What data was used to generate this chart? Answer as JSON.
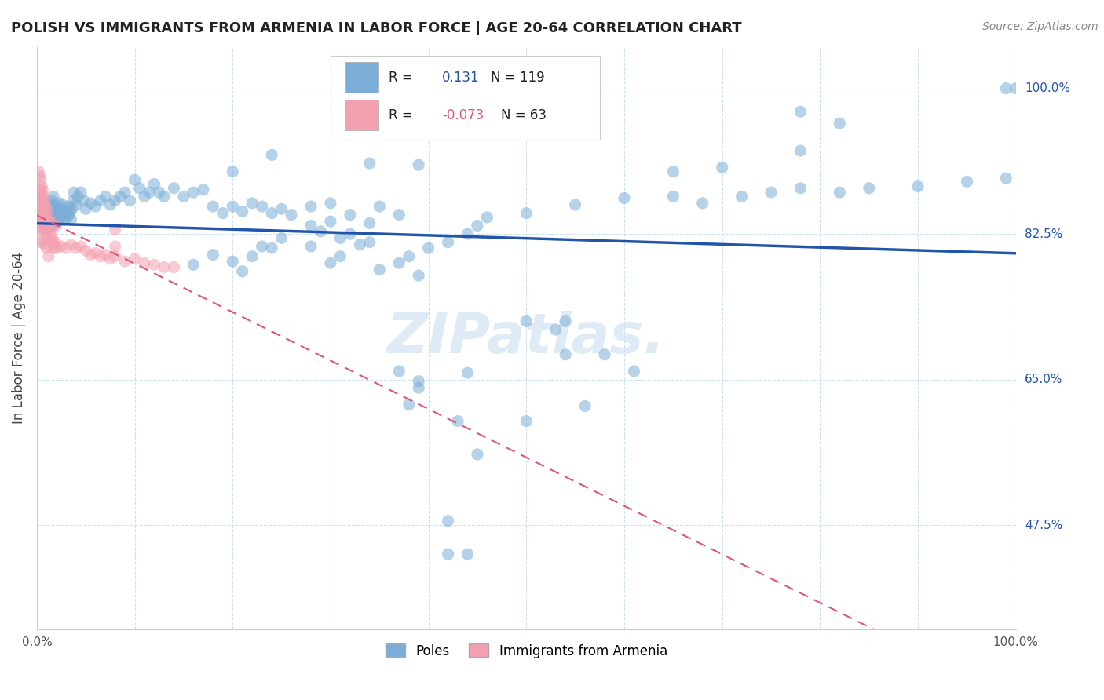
{
  "title": "POLISH VS IMMIGRANTS FROM ARMENIA IN LABOR FORCE | AGE 20-64 CORRELATION CHART",
  "source": "Source: ZipAtlas.com",
  "ylabel": "In Labor Force | Age 20-64",
  "xlim": [
    0.0,
    1.0
  ],
  "ylim": [
    0.35,
    1.05
  ],
  "y_tick_labels_right": [
    "100.0%",
    "82.5%",
    "65.0%",
    "47.5%"
  ],
  "y_tick_vals_right": [
    1.0,
    0.825,
    0.65,
    0.475
  ],
  "legend_blue_R": "0.131",
  "legend_blue_N": "119",
  "legend_pink_R": "-0.073",
  "legend_pink_N": "63",
  "blue_color": "#7aaed6",
  "pink_color": "#f4a0b0",
  "blue_line_color": "#2255aa",
  "pink_line_color": "#dd5577",
  "grid_color": "#c8dff0",
  "watermark_text": "ZIPatlas.",
  "blue_scatter": [
    [
      0.005,
      0.87
    ],
    [
      0.006,
      0.855
    ],
    [
      0.007,
      0.845
    ],
    [
      0.007,
      0.838
    ],
    [
      0.008,
      0.86
    ],
    [
      0.008,
      0.85
    ],
    [
      0.009,
      0.845
    ],
    [
      0.009,
      0.835
    ],
    [
      0.01,
      0.858
    ],
    [
      0.01,
      0.848
    ],
    [
      0.011,
      0.862
    ],
    [
      0.011,
      0.852
    ],
    [
      0.012,
      0.842
    ],
    [
      0.012,
      0.832
    ],
    [
      0.013,
      0.856
    ],
    [
      0.013,
      0.846
    ],
    [
      0.014,
      0.85
    ],
    [
      0.014,
      0.84
    ],
    [
      0.015,
      0.865
    ],
    [
      0.015,
      0.855
    ],
    [
      0.016,
      0.845
    ],
    [
      0.016,
      0.835
    ],
    [
      0.017,
      0.87
    ],
    [
      0.017,
      0.86
    ],
    [
      0.018,
      0.855
    ],
    [
      0.018,
      0.845
    ],
    [
      0.019,
      0.848
    ],
    [
      0.019,
      0.838
    ],
    [
      0.02,
      0.858
    ],
    [
      0.02,
      0.848
    ],
    [
      0.021,
      0.84
    ],
    [
      0.022,
      0.852
    ],
    [
      0.023,
      0.862
    ],
    [
      0.023,
      0.842
    ],
    [
      0.024,
      0.855
    ],
    [
      0.025,
      0.845
    ],
    [
      0.026,
      0.86
    ],
    [
      0.027,
      0.85
    ],
    [
      0.028,
      0.842
    ],
    [
      0.029,
      0.852
    ],
    [
      0.03,
      0.855
    ],
    [
      0.031,
      0.845
    ],
    [
      0.032,
      0.858
    ],
    [
      0.033,
      0.848
    ],
    [
      0.034,
      0.852
    ],
    [
      0.035,
      0.842
    ],
    [
      0.036,
      0.855
    ],
    [
      0.037,
      0.865
    ],
    [
      0.038,
      0.875
    ],
    [
      0.04,
      0.86
    ],
    [
      0.042,
      0.87
    ],
    [
      0.045,
      0.875
    ],
    [
      0.048,
      0.865
    ],
    [
      0.05,
      0.855
    ],
    [
      0.055,
      0.862
    ],
    [
      0.06,
      0.858
    ],
    [
      0.065,
      0.865
    ],
    [
      0.07,
      0.87
    ],
    [
      0.075,
      0.86
    ],
    [
      0.08,
      0.865
    ],
    [
      0.085,
      0.87
    ],
    [
      0.09,
      0.875
    ],
    [
      0.095,
      0.865
    ],
    [
      0.1,
      0.89
    ],
    [
      0.105,
      0.88
    ],
    [
      0.11,
      0.87
    ],
    [
      0.115,
      0.875
    ],
    [
      0.12,
      0.885
    ],
    [
      0.125,
      0.875
    ],
    [
      0.13,
      0.87
    ],
    [
      0.14,
      0.88
    ],
    [
      0.15,
      0.87
    ],
    [
      0.16,
      0.875
    ],
    [
      0.17,
      0.878
    ],
    [
      0.18,
      0.858
    ],
    [
      0.19,
      0.85
    ],
    [
      0.2,
      0.858
    ],
    [
      0.21,
      0.852
    ],
    [
      0.22,
      0.862
    ],
    [
      0.23,
      0.858
    ],
    [
      0.24,
      0.85
    ],
    [
      0.25,
      0.855
    ],
    [
      0.26,
      0.848
    ],
    [
      0.28,
      0.858
    ],
    [
      0.3,
      0.862
    ],
    [
      0.28,
      0.835
    ],
    [
      0.3,
      0.84
    ],
    [
      0.32,
      0.848
    ],
    [
      0.34,
      0.838
    ],
    [
      0.35,
      0.858
    ],
    [
      0.37,
      0.848
    ],
    [
      0.29,
      0.828
    ],
    [
      0.31,
      0.82
    ],
    [
      0.33,
      0.812
    ],
    [
      0.23,
      0.81
    ],
    [
      0.25,
      0.82
    ],
    [
      0.28,
      0.81
    ],
    [
      0.22,
      0.798
    ],
    [
      0.24,
      0.808
    ],
    [
      0.32,
      0.825
    ],
    [
      0.34,
      0.815
    ],
    [
      0.2,
      0.792
    ],
    [
      0.21,
      0.78
    ],
    [
      0.18,
      0.8
    ],
    [
      0.16,
      0.788
    ],
    [
      0.3,
      0.79
    ],
    [
      0.31,
      0.798
    ],
    [
      0.38,
      0.798
    ],
    [
      0.4,
      0.808
    ],
    [
      0.35,
      0.782
    ],
    [
      0.37,
      0.79
    ],
    [
      0.42,
      0.815
    ],
    [
      0.44,
      0.825
    ],
    [
      0.39,
      0.775
    ],
    [
      0.45,
      0.835
    ],
    [
      0.46,
      0.845
    ],
    [
      0.5,
      0.85
    ],
    [
      0.55,
      0.86
    ],
    [
      0.6,
      0.868
    ],
    [
      0.65,
      0.87
    ],
    [
      0.68,
      0.862
    ],
    [
      0.72,
      0.87
    ],
    [
      0.75,
      0.875
    ],
    [
      0.78,
      0.88
    ],
    [
      0.82,
      0.875
    ],
    [
      0.85,
      0.88
    ],
    [
      0.9,
      0.882
    ],
    [
      0.95,
      0.888
    ],
    [
      0.99,
      0.892
    ],
    [
      1.0,
      1.0
    ],
    [
      0.99,
      1.0
    ],
    [
      0.78,
      0.972
    ],
    [
      0.82,
      0.958
    ],
    [
      0.78,
      0.925
    ],
    [
      0.7,
      0.905
    ],
    [
      0.65,
      0.9
    ],
    [
      0.2,
      0.9
    ],
    [
      0.24,
      0.92
    ],
    [
      0.34,
      0.91
    ],
    [
      0.39,
      0.908
    ],
    [
      0.5,
      0.72
    ],
    [
      0.53,
      0.71
    ],
    [
      0.54,
      0.72
    ],
    [
      0.54,
      0.68
    ],
    [
      0.58,
      0.68
    ],
    [
      0.61,
      0.66
    ],
    [
      0.37,
      0.66
    ],
    [
      0.44,
      0.658
    ],
    [
      0.5,
      0.6
    ],
    [
      0.38,
      0.62
    ],
    [
      0.43,
      0.6
    ],
    [
      0.39,
      0.648
    ],
    [
      0.39,
      0.64
    ],
    [
      0.56,
      0.618
    ],
    [
      0.45,
      0.56
    ],
    [
      0.42,
      0.48
    ],
    [
      0.42,
      0.44
    ],
    [
      0.44,
      0.44
    ]
  ],
  "pink_scatter": [
    [
      0.002,
      0.9
    ],
    [
      0.003,
      0.895
    ],
    [
      0.003,
      0.878
    ],
    [
      0.003,
      0.86
    ],
    [
      0.004,
      0.89
    ],
    [
      0.004,
      0.875
    ],
    [
      0.004,
      0.858
    ],
    [
      0.005,
      0.882
    ],
    [
      0.005,
      0.868
    ],
    [
      0.005,
      0.852
    ],
    [
      0.006,
      0.878
    ],
    [
      0.006,
      0.862
    ],
    [
      0.006,
      0.848
    ],
    [
      0.007,
      0.87
    ],
    [
      0.007,
      0.855
    ],
    [
      0.008,
      0.865
    ],
    [
      0.008,
      0.848
    ],
    [
      0.009,
      0.858
    ],
    [
      0.009,
      0.842
    ],
    [
      0.01,
      0.855
    ],
    [
      0.01,
      0.84
    ],
    [
      0.011,
      0.848
    ],
    [
      0.011,
      0.832
    ],
    [
      0.012,
      0.842
    ],
    [
      0.013,
      0.835
    ],
    [
      0.014,
      0.828
    ],
    [
      0.015,
      0.822
    ],
    [
      0.016,
      0.818
    ],
    [
      0.017,
      0.812
    ],
    [
      0.018,
      0.808
    ],
    [
      0.019,
      0.815
    ],
    [
      0.02,
      0.808
    ],
    [
      0.025,
      0.81
    ],
    [
      0.03,
      0.808
    ],
    [
      0.035,
      0.812
    ],
    [
      0.04,
      0.808
    ],
    [
      0.045,
      0.81
    ],
    [
      0.05,
      0.805
    ],
    [
      0.055,
      0.8
    ],
    [
      0.06,
      0.802
    ],
    [
      0.065,
      0.798
    ],
    [
      0.07,
      0.8
    ],
    [
      0.075,
      0.795
    ],
    [
      0.08,
      0.798
    ],
    [
      0.09,
      0.792
    ],
    [
      0.1,
      0.795
    ],
    [
      0.11,
      0.79
    ],
    [
      0.12,
      0.788
    ],
    [
      0.13,
      0.785
    ],
    [
      0.01,
      0.83
    ],
    [
      0.01,
      0.818
    ],
    [
      0.01,
      0.808
    ],
    [
      0.012,
      0.798
    ],
    [
      0.008,
      0.828
    ],
    [
      0.008,
      0.812
    ],
    [
      0.006,
      0.832
    ],
    [
      0.006,
      0.818
    ],
    [
      0.004,
      0.845
    ],
    [
      0.004,
      0.83
    ],
    [
      0.004,
      0.815
    ],
    [
      0.002,
      0.87
    ],
    [
      0.002,
      0.855
    ],
    [
      0.002,
      0.84
    ],
    [
      0.003,
      0.842
    ],
    [
      0.005,
      0.835
    ],
    [
      0.007,
      0.84
    ],
    [
      0.014,
      0.84
    ],
    [
      0.02,
      0.835
    ],
    [
      0.14,
      0.785
    ],
    [
      0.08,
      0.83
    ],
    [
      0.08,
      0.81
    ]
  ]
}
